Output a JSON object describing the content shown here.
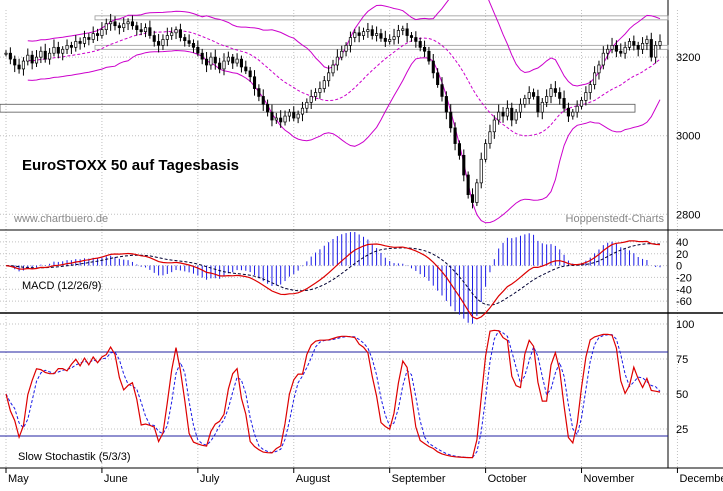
{
  "chart_data": [
    {
      "type": "candlestick",
      "title": "EuroSTOXX 50 auf Tagesbasis",
      "watermark_left": "www.chartbuero.de",
      "watermark_right": "Hoppenstedt-Charts",
      "ylim": [
        2760,
        3320
      ],
      "yticks": [
        2800,
        3000,
        3200
      ],
      "ytick_labels": [
        "2800",
        "3000",
        "3200"
      ],
      "months": [
        "May",
        "June",
        "July",
        "August",
        "September",
        "October",
        "November",
        "December"
      ],
      "month_days": [
        0,
        22,
        44,
        66,
        88,
        110,
        132,
        154
      ],
      "horizontal_lines": [
        3300,
        3225
      ],
      "support_zone": [
        3060,
        3080
      ],
      "close": [
        3210,
        3195,
        3180,
        3170,
        3190,
        3205,
        3185,
        3200,
        3215,
        3195,
        3210,
        3225,
        3210,
        3220,
        3230,
        3225,
        3240,
        3235,
        3250,
        3245,
        3260,
        3255,
        3270,
        3285,
        3290,
        3280,
        3275,
        3285,
        3290,
        3280,
        3270,
        3265,
        3275,
        3255,
        3240,
        3230,
        3245,
        3255,
        3262,
        3270,
        3250,
        3242,
        3235,
        3225,
        3210,
        3195,
        3180,
        3200,
        3185,
        3170,
        3190,
        3200,
        3185,
        3195,
        3175,
        3165,
        3150,
        3120,
        3100,
        3080,
        3060,
        3040,
        3045,
        3035,
        3050,
        3060,
        3045,
        3055,
        3070,
        3085,
        3100,
        3110,
        3120,
        3140,
        3160,
        3180,
        3200,
        3215,
        3230,
        3250,
        3262,
        3255,
        3265,
        3270,
        3255,
        3260,
        3248,
        3240,
        3245,
        3252,
        3268,
        3272,
        3255,
        3250,
        3240,
        3225,
        3215,
        3190,
        3160,
        3130,
        3100,
        3060,
        3020,
        2980,
        2950,
        2900,
        2850,
        2830,
        2880,
        2940,
        2980,
        3010,
        3040,
        3060,
        3050,
        3070,
        3040,
        3060,
        3080,
        3095,
        3110,
        3100,
        3060,
        3085,
        3100,
        3120,
        3110,
        3095,
        3070,
        3050,
        3060,
        3075,
        3090,
        3110,
        3130,
        3160,
        3180,
        3210,
        3220,
        3230,
        3215,
        3210,
        3225,
        3240,
        3230,
        3220,
        3235,
        3245,
        3200,
        3230,
        3240
      ]
    },
    {
      "type": "line",
      "title": "MACD (12/26/9)",
      "ylim": [
        -70,
        50
      ],
      "yticks": [
        40,
        20,
        0,
        -20,
        -40,
        -60
      ],
      "ytick_labels": [
        "40",
        "20",
        "0",
        "-20",
        "-40",
        "-60"
      ],
      "series": []
    },
    {
      "type": "line",
      "title": "Slow Stochastik (5/3/3)",
      "ylim": [
        0,
        105
      ],
      "yticks": [
        100,
        75,
        50,
        25
      ],
      "ytick_labels": [
        "100",
        "75",
        "50",
        "25"
      ],
      "reference_lines": [
        80,
        20
      ],
      "series": []
    }
  ],
  "colors": {
    "candle": "#000000",
    "bollinger": "#cc00cc",
    "sma": "#cc00cc",
    "ref": "#999999",
    "macd": "#dd0000",
    "signal": "#000033",
    "histogram": "#1a1ae6",
    "stoch_k": "#dd0000",
    "stoch_d": "#1a1ae6",
    "hline": "#2020a0",
    "grid": "#c0c0c0"
  }
}
